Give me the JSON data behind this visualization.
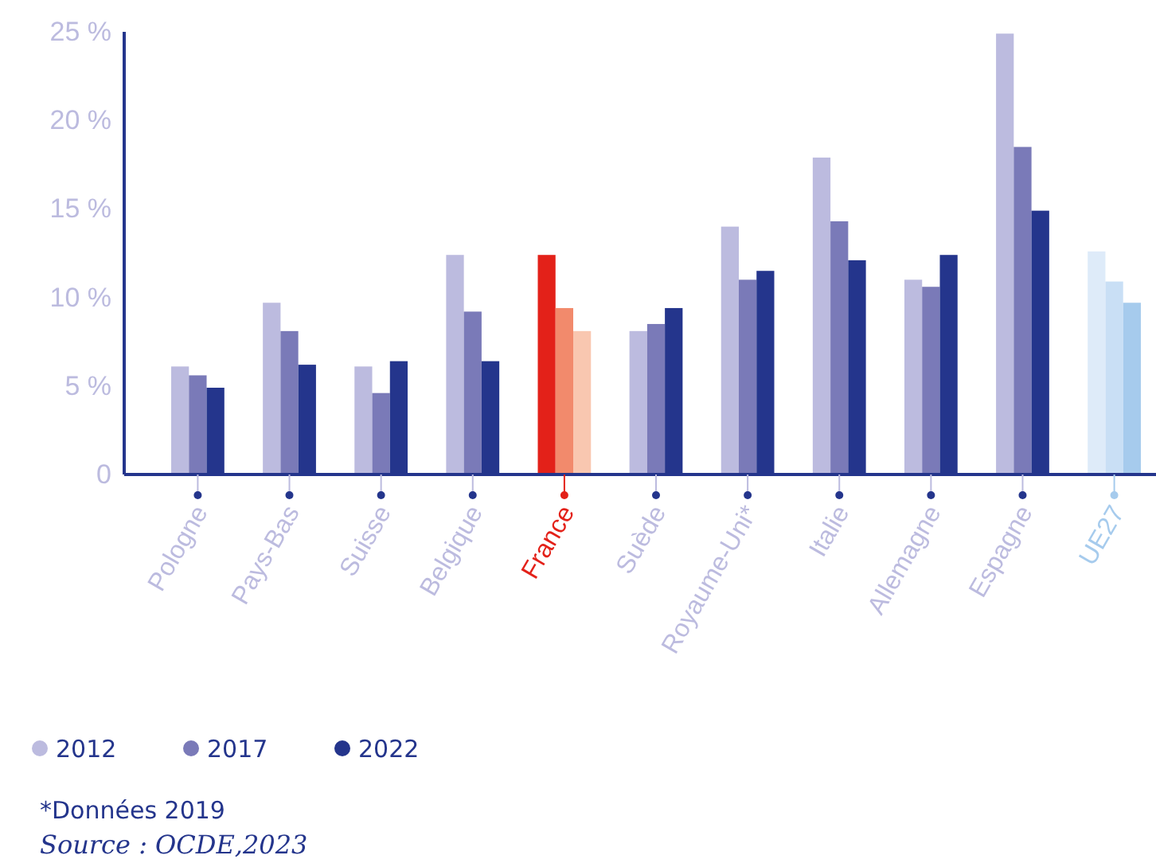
{
  "chart_data": {
    "type": "bar",
    "categories": [
      "Pologne",
      "Pays-Bas",
      "Suisse",
      "Belgique",
      "France",
      "Suède",
      "Royaume-Uni*",
      "Italie",
      "Allemagne",
      "Espagne",
      "UE27"
    ],
    "series": [
      {
        "name": "2012",
        "color": "#bcbbdf",
        "colors": [
          "#bcbbdf",
          "#bcbbdf",
          "#bcbbdf",
          "#bcbbdf",
          "#e32119",
          "#bcbbdf",
          "#bcbbdf",
          "#bcbbdf",
          "#bcbbdf",
          "#bcbbdf",
          "#deebf9"
        ],
        "values": [
          6.1,
          9.7,
          6.1,
          12.4,
          12.4,
          8.1,
          14.0,
          17.9,
          11.0,
          24.9,
          12.6
        ]
      },
      {
        "name": "2017",
        "color": "#7a7ab8",
        "colors": [
          "#7a7ab8",
          "#7a7ab8",
          "#7a7ab8",
          "#7a7ab8",
          "#f28a6c",
          "#7a7ab8",
          "#7a7ab8",
          "#7a7ab8",
          "#7a7ab8",
          "#7a7ab8",
          "#c9dff5"
        ],
        "values": [
          5.6,
          8.1,
          4.6,
          9.2,
          9.4,
          8.5,
          11.0,
          14.3,
          10.6,
          18.5,
          10.9
        ]
      },
      {
        "name": "2022",
        "color": "#24358c",
        "colors": [
          "#24358c",
          "#24358c",
          "#24358c",
          "#24358c",
          "#f9c7b0",
          "#24358c",
          "#24358c",
          "#24358c",
          "#24358c",
          "#24358c",
          "#a6cbed"
        ],
        "values": [
          4.9,
          6.2,
          6.4,
          6.4,
          8.1,
          9.4,
          11.5,
          12.1,
          12.4,
          14.9,
          9.7
        ]
      }
    ],
    "ylim": [
      0,
      25
    ],
    "yticks": [
      {
        "value": 0,
        "label": "0"
      },
      {
        "value": 5,
        "label": "5 %"
      },
      {
        "value": 10,
        "label": "10 %"
      },
      {
        "value": 15,
        "label": "15 %"
      },
      {
        "value": 20,
        "label": "20 %"
      },
      {
        "value": 25,
        "label": "25 %"
      }
    ],
    "grid": false,
    "legend": "bottom left",
    "annotations": [
      "*Données 2019",
      "Source : OCDE,2023"
    ]
  }
}
